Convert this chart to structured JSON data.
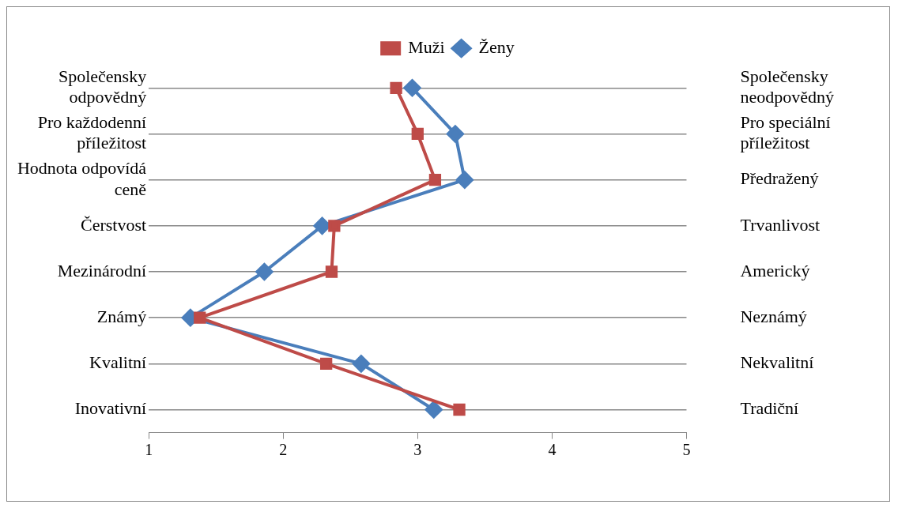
{
  "chart_data": {
    "type": "line",
    "orientation": "horizontal",
    "categories": [
      "Společensky odpovědný",
      "Pro každodenní příležitost",
      "Hodnota odpovídá ceně",
      "Čerstvost",
      "Mezinárodní",
      "Známý",
      "Kvalitní",
      "Inovativní"
    ],
    "y2_categories": [
      "Společensky neodpovědný",
      "Pro speciální příležitost",
      "Předražený",
      "Trvanlivost",
      "Americký",
      "Neznámý",
      "Nekvalitní",
      "Tradiční"
    ],
    "xlim": [
      1,
      5
    ],
    "xticks": [
      1,
      2,
      3,
      4,
      5
    ],
    "grid": "y",
    "legend": "top",
    "series": [
      {
        "name": "Ženy",
        "color": "#4a7ebb",
        "marker": "diamond",
        "values": [
          2.96,
          3.28,
          3.35,
          2.29,
          1.86,
          1.31,
          2.58,
          3.12
        ]
      },
      {
        "name": "Muži",
        "color": "#be4b48",
        "marker": "square",
        "values": [
          2.84,
          3.0,
          3.13,
          2.38,
          2.36,
          1.38,
          2.32,
          3.31
        ]
      }
    ]
  }
}
